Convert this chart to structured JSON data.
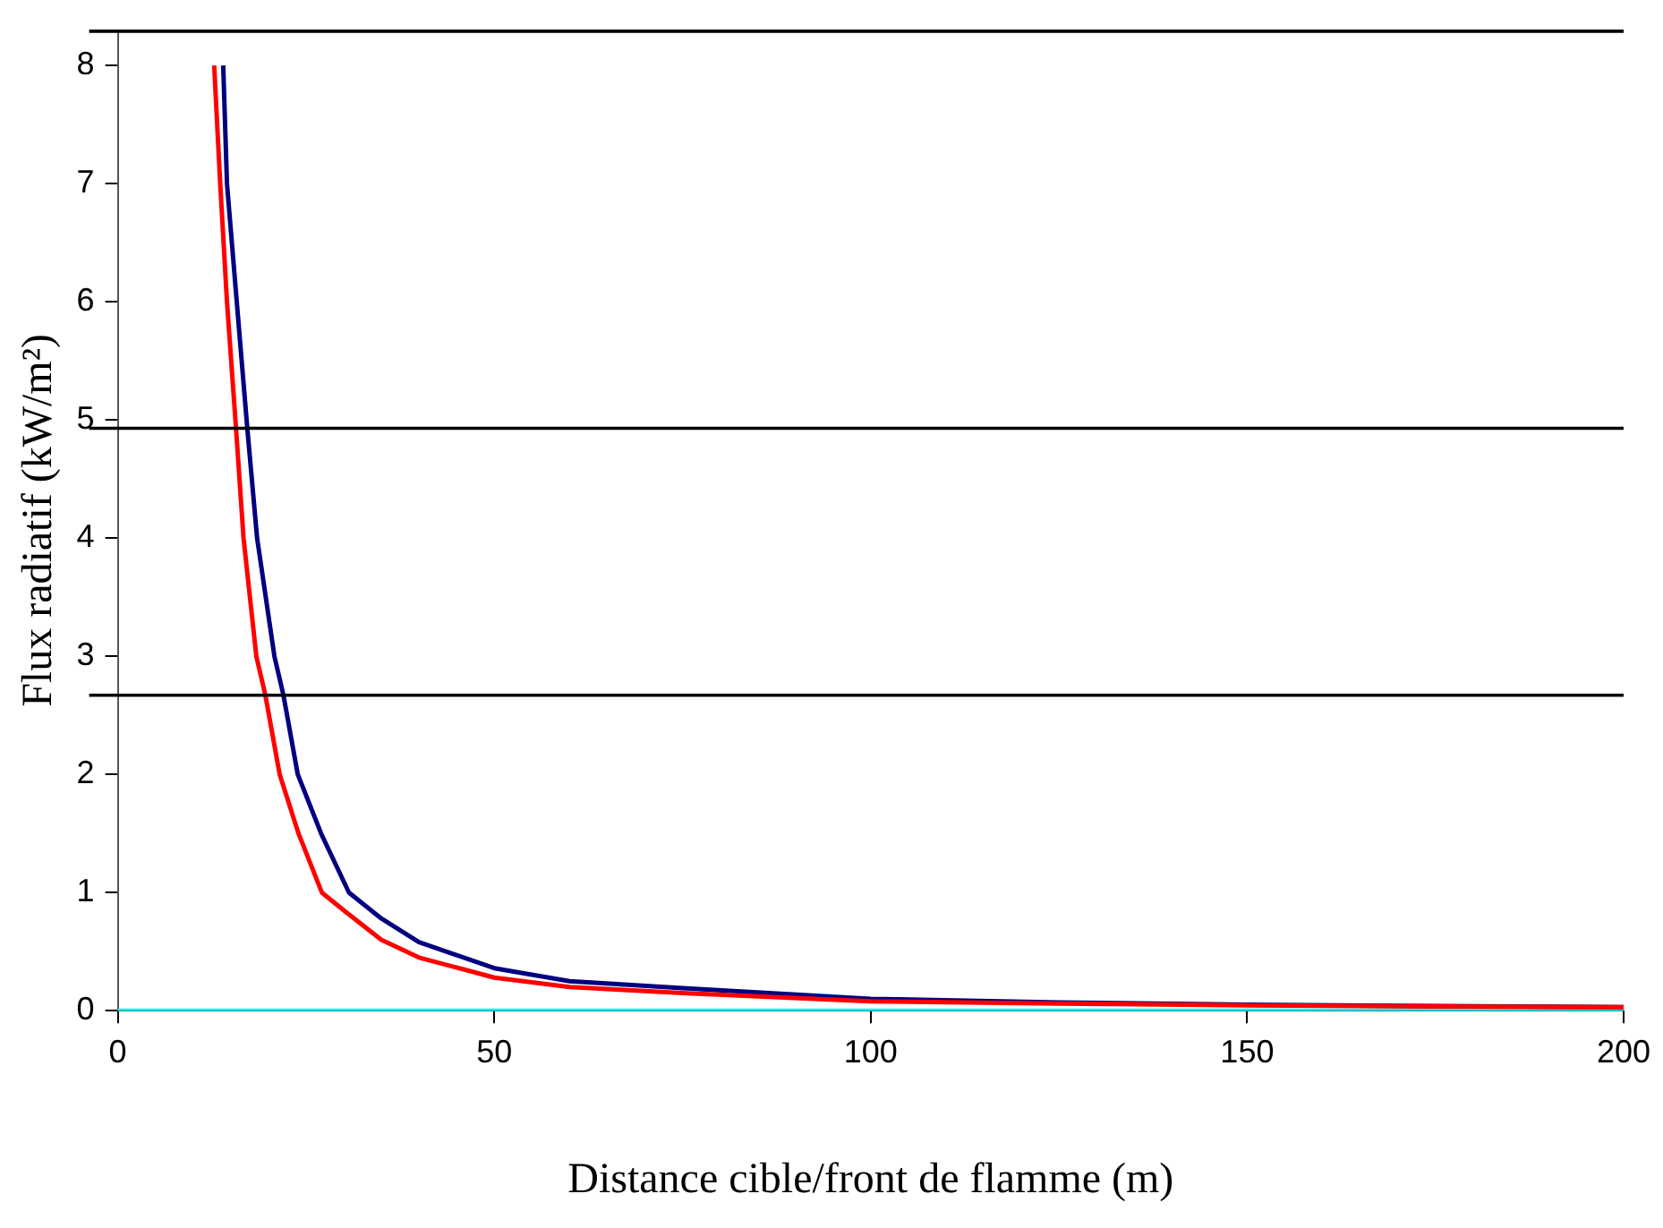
{
  "chart_data": {
    "type": "line",
    "xlabel": "Distance cible/front de flamme (m)",
    "ylabel": "Flux radiatif (kW/m²)",
    "xlim": [
      0,
      200
    ],
    "xticks": [
      0,
      50,
      100,
      150,
      200
    ],
    "ylim": [
      0,
      8.3
    ],
    "yticks": [
      0,
      1,
      2,
      3,
      4,
      5,
      6,
      7,
      8
    ],
    "grid": false,
    "legend": false,
    "marker": "none",
    "line_style": "solid",
    "series": [
      {
        "color": "#ff0000",
        "x": [
          12.8,
          13.6,
          14.5,
          15.7,
          16.7,
          18.4,
          19.6,
          21.5,
          24,
          27.1,
          30,
          35,
          40,
          50,
          60,
          75,
          100,
          125,
          150,
          175,
          200
        ],
        "values": [
          8,
          7,
          6,
          4.93,
          4,
          3,
          2.67,
          2,
          1.5,
          1,
          0.85,
          0.6,
          0.45,
          0.28,
          0.2,
          0.15,
          0.08,
          0.06,
          0.045,
          0.035,
          0.03
        ]
      },
      {
        "color": "#000080",
        "x": [
          14,
          14.5,
          15.8,
          17.2,
          18.5,
          20.8,
          22,
          23.9,
          27,
          30.7,
          35,
          40,
          50,
          60,
          75,
          100,
          125,
          150,
          175,
          200
        ],
        "values": [
          8,
          7,
          6,
          4.93,
          4,
          3,
          2.67,
          2,
          1.5,
          1,
          0.78,
          0.58,
          0.36,
          0.25,
          0.19,
          0.1,
          0.07,
          0.05,
          0.04,
          0.03
        ]
      },
      {
        "color": "#00ffff",
        "x": [
          0,
          200
        ],
        "values": [
          0,
          0
        ]
      }
    ],
    "ref_lines": [
      {
        "axis": "y",
        "value": 8.29,
        "color": "#000000"
      },
      {
        "axis": "y",
        "value": 4.93,
        "color": "#000000"
      },
      {
        "axis": "y",
        "value": 2.67,
        "color": "#000000"
      }
    ]
  }
}
